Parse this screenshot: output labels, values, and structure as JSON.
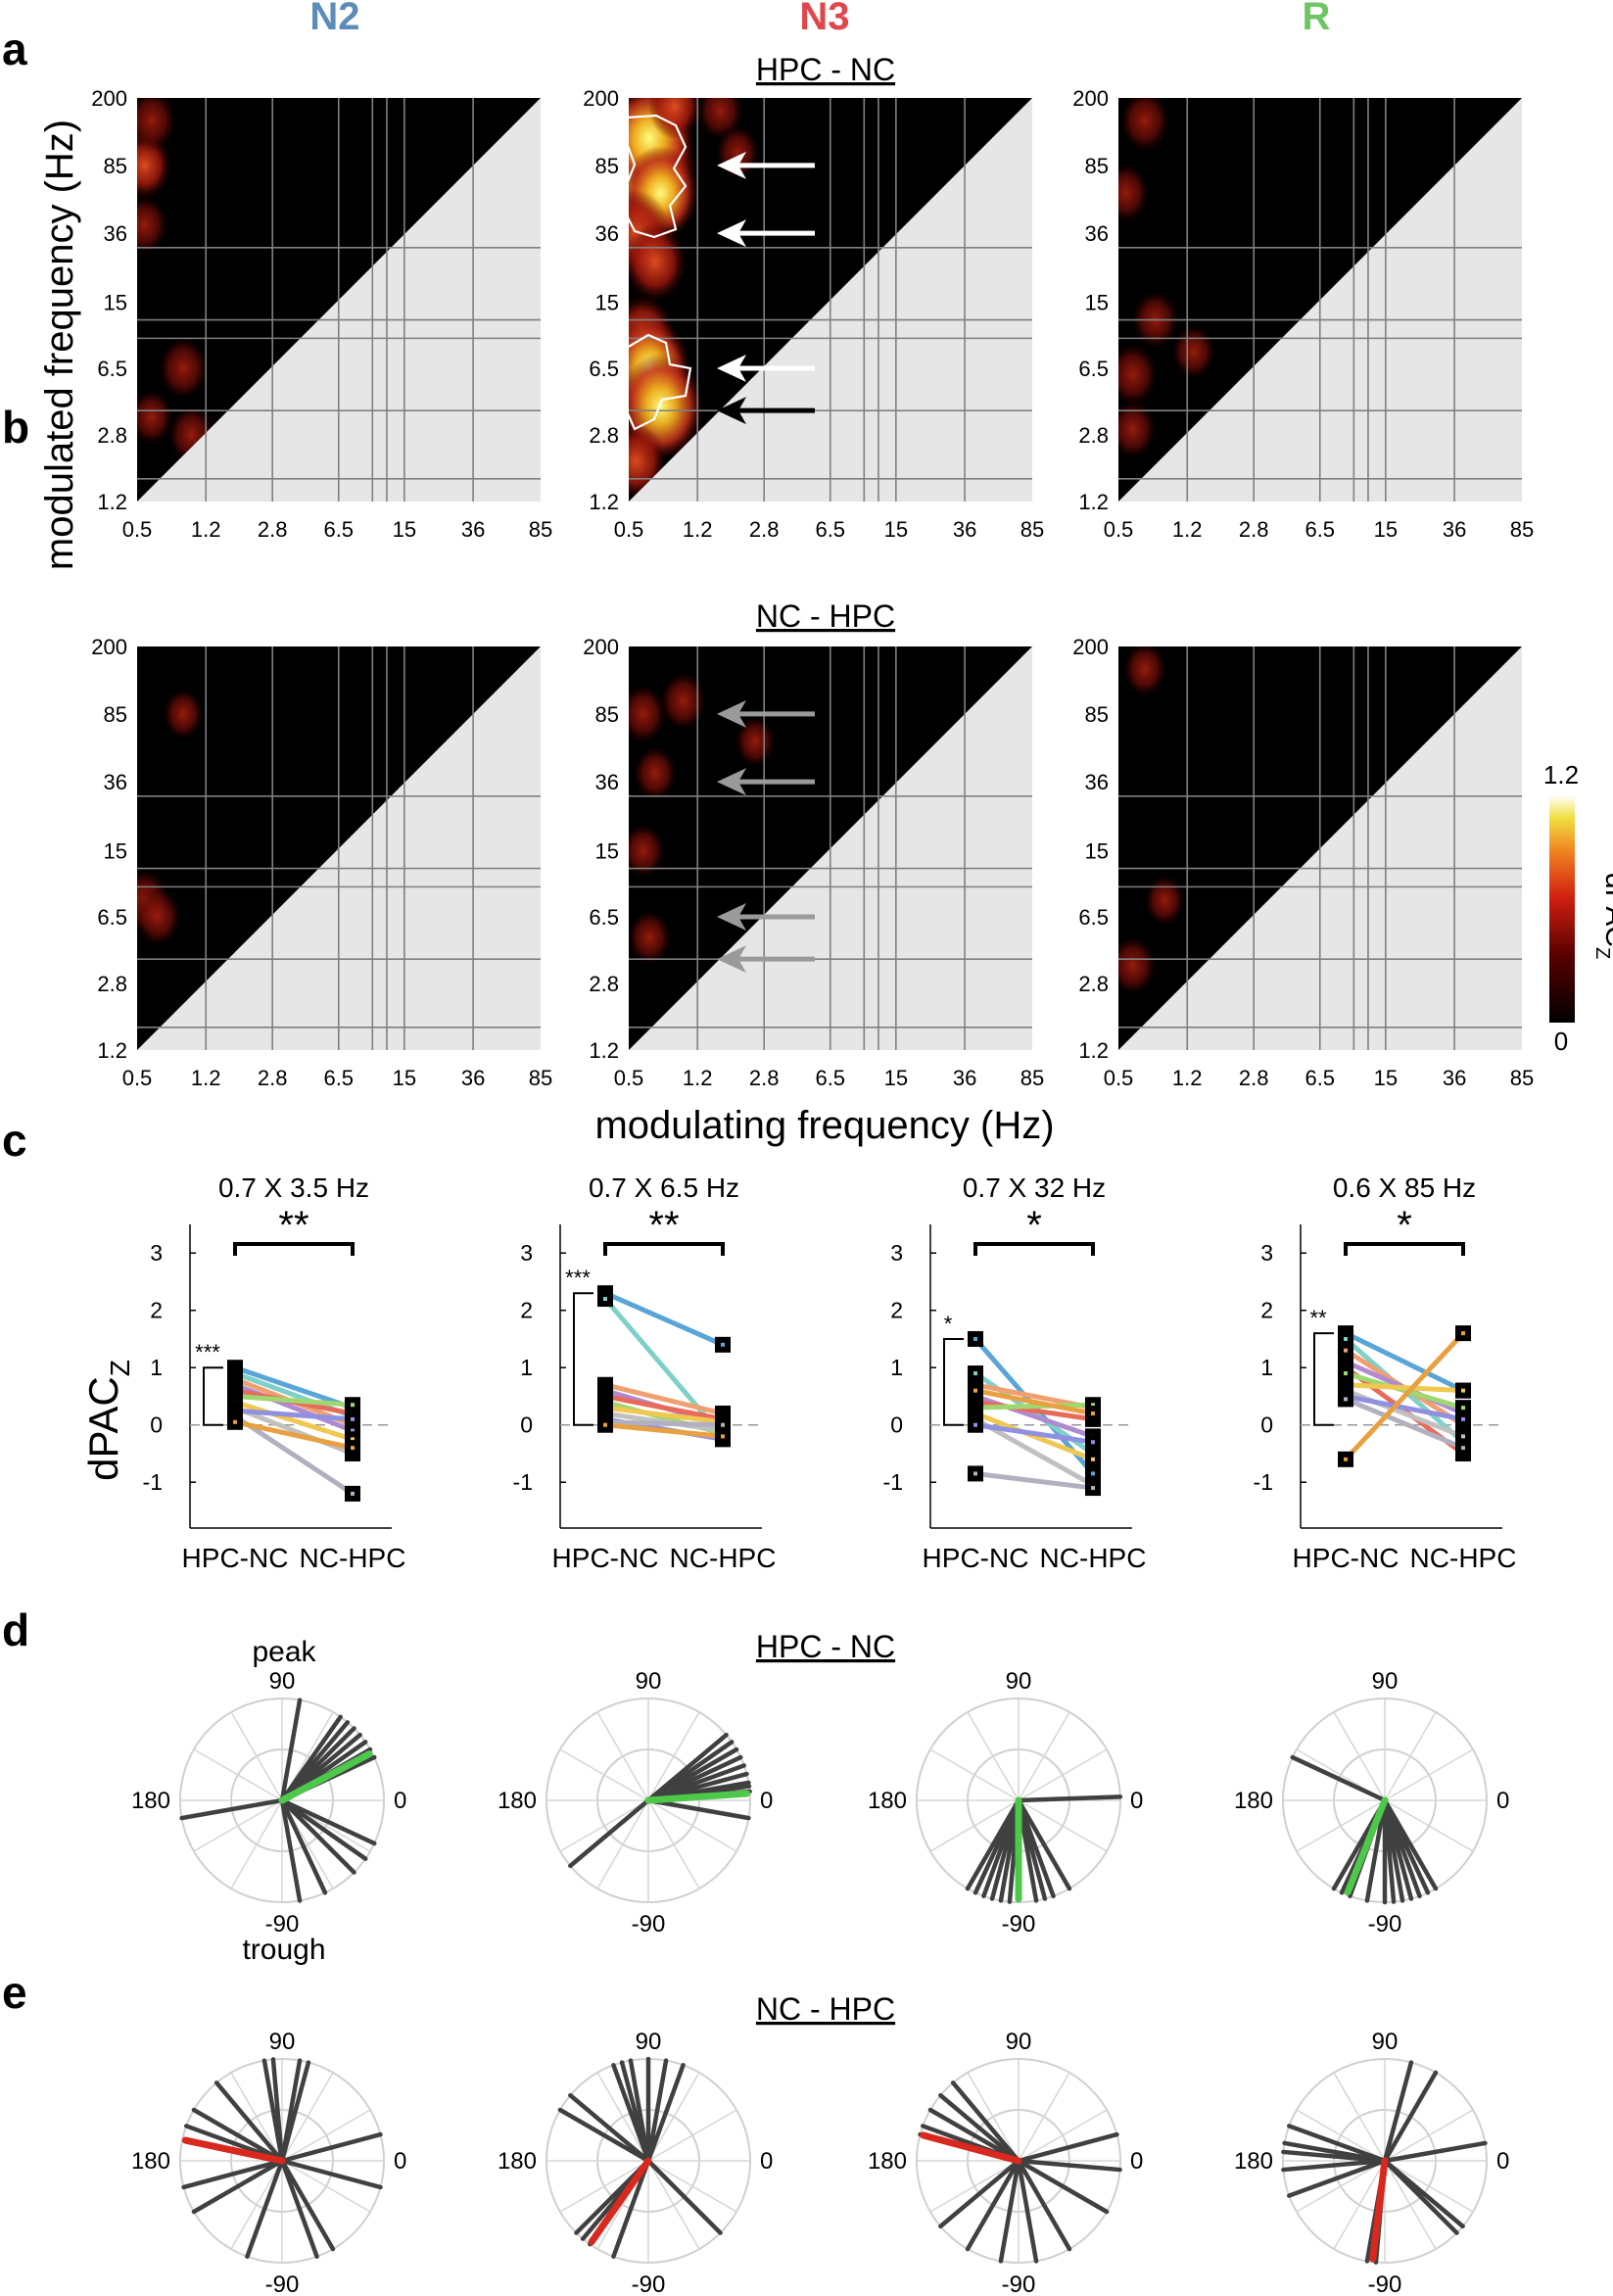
{
  "figure": {
    "panel_labels": [
      "a",
      "b",
      "c",
      "d",
      "e"
    ],
    "state_labels": [
      {
        "text": "N2",
        "color": "#5b8db8"
      },
      {
        "text": "N3",
        "color": "#e0474c"
      },
      {
        "text": "R",
        "color": "#6cc763"
      }
    ],
    "row_a_title": "HPC - NC",
    "row_b_title": "NC - HPC",
    "row_d_title": "HPC - NC",
    "row_e_title": "NC - HPC",
    "ylabel_ab": "modulated frequency (Hz)",
    "xlabel_ab": "modulating frequency (Hz)",
    "colorbar": {
      "label": "dPAC",
      "subscript": "Z",
      "max_label": "1.2",
      "min_label": "0",
      "range": [
        0,
        1.2
      ]
    },
    "ylabel_c": "dPAC",
    "ylabel_c_sub": "Z",
    "polar_annotations": {
      "peak": "peak",
      "trough": "trough"
    }
  },
  "chart_data": [
    {
      "type": "heatmap",
      "panel": "a",
      "title": "HPC - NC",
      "xlabel": "modulating frequency (Hz)",
      "ylabel": "modulated frequency (Hz)",
      "x_ticks": [
        "0.5",
        "1.2",
        "2.8",
        "6.5",
        "15",
        "36",
        "85"
      ],
      "y_ticks": [
        "1.2",
        "2.8",
        "6.5",
        "15",
        "36",
        "85",
        "200"
      ],
      "subplots": [
        {
          "state": "N2",
          "blobs": [
            {
              "x": 0.55,
              "y": 85,
              "value": 0.35
            },
            {
              "x": 0.6,
              "y": 150,
              "value": 0.3
            },
            {
              "x": 0.55,
              "y": 40,
              "value": 0.25
            },
            {
              "x": 0.9,
              "y": 6.5,
              "value": 0.3
            },
            {
              "x": 0.6,
              "y": 3.5,
              "value": 0.2
            },
            {
              "x": 1.0,
              "y": 2.8,
              "value": 0.25
            }
          ]
        },
        {
          "state": "N3",
          "arrows": [
            85,
            36,
            6.5,
            3.8
          ],
          "arrow_colors": [
            "white",
            "white",
            "white",
            "black"
          ],
          "blobs": [
            {
              "x": 0.6,
              "y": 85,
              "value": 1.2
            },
            {
              "x": 0.65,
              "y": 120,
              "value": 0.9
            },
            {
              "x": 0.75,
              "y": 60,
              "value": 0.7
            },
            {
              "x": 0.55,
              "y": 36,
              "value": 0.6
            },
            {
              "x": 0.7,
              "y": 25,
              "value": 0.5
            },
            {
              "x": 0.6,
              "y": 10,
              "value": 0.5
            },
            {
              "x": 0.65,
              "y": 6.5,
              "value": 0.8
            },
            {
              "x": 0.75,
              "y": 4.0,
              "value": 0.85
            },
            {
              "x": 0.55,
              "y": 2.0,
              "value": 0.45
            },
            {
              "x": 0.9,
              "y": 180,
              "value": 0.35
            },
            {
              "x": 1.6,
              "y": 170,
              "value": 0.25
            },
            {
              "x": 2.0,
              "y": 100,
              "value": 0.2
            }
          ]
        },
        {
          "state": "R",
          "blobs": [
            {
              "x": 0.7,
              "y": 150,
              "value": 0.3
            },
            {
              "x": 0.55,
              "y": 60,
              "value": 0.25
            },
            {
              "x": 0.8,
              "y": 12,
              "value": 0.25
            },
            {
              "x": 0.6,
              "y": 6.0,
              "value": 0.3
            },
            {
              "x": 1.3,
              "y": 8,
              "value": 0.2
            },
            {
              "x": 0.6,
              "y": 3.0,
              "value": 0.25
            }
          ]
        }
      ]
    },
    {
      "type": "heatmap",
      "panel": "b",
      "title": "NC - HPC",
      "xlabel": "modulating frequency (Hz)",
      "ylabel": "modulated frequency (Hz)",
      "x_ticks": [
        "0.5",
        "1.2",
        "2.8",
        "6.5",
        "15",
        "36",
        "85"
      ],
      "y_ticks": [
        "1.2",
        "2.8",
        "6.5",
        "15",
        "36",
        "85",
        "200"
      ],
      "subplots": [
        {
          "state": "N2",
          "blobs": [
            {
              "x": 0.55,
              "y": 8.0,
              "value": 0.3
            },
            {
              "x": 0.65,
              "y": 6.5,
              "value": 0.25
            },
            {
              "x": 0.9,
              "y": 85,
              "value": 0.15
            }
          ]
        },
        {
          "state": "N3",
          "arrows": [
            85,
            36,
            6.5,
            3.8
          ],
          "arrow_colors": [
            "grey",
            "grey",
            "grey",
            "grey"
          ],
          "blobs": [
            {
              "x": 0.6,
              "y": 85,
              "value": 0.25
            },
            {
              "x": 1.0,
              "y": 100,
              "value": 0.25
            },
            {
              "x": 0.7,
              "y": 40,
              "value": 0.2
            },
            {
              "x": 0.6,
              "y": 15,
              "value": 0.2
            },
            {
              "x": 0.65,
              "y": 5,
              "value": 0.2
            },
            {
              "x": 2.5,
              "y": 60,
              "value": 0.15
            }
          ]
        },
        {
          "state": "R",
          "blobs": [
            {
              "x": 0.7,
              "y": 150,
              "value": 0.2
            },
            {
              "x": 0.6,
              "y": 3.5,
              "value": 0.25
            },
            {
              "x": 0.9,
              "y": 8,
              "value": 0.15
            }
          ]
        }
      ]
    },
    {
      "type": "line",
      "panel": "c",
      "ylabel": "dPAC_Z",
      "ylim": [
        -1.8,
        3.5
      ],
      "y_ticks": [
        "-1",
        "0",
        "1",
        "2",
        "3"
      ],
      "x_categories": [
        "HPC-NC",
        "NC-HPC"
      ],
      "subplots": [
        {
          "title": "0.7 X 3.5 Hz",
          "compare_sig": "**",
          "zero_sig": "***",
          "pairs": [
            [
              1.0,
              0.3
            ],
            [
              0.9,
              0.15
            ],
            [
              0.8,
              0.0
            ],
            [
              0.7,
              -0.1
            ],
            [
              0.6,
              0.2
            ],
            [
              0.5,
              0.35
            ],
            [
              0.4,
              -0.25
            ],
            [
              0.3,
              -0.5
            ],
            [
              0.25,
              0.1
            ],
            [
              0.15,
              -1.2
            ],
            [
              0.05,
              -0.4
            ]
          ]
        },
        {
          "title": "0.7 X 6.5 Hz",
          "compare_sig": "**",
          "zero_sig": "***",
          "pairs": [
            [
              2.3,
              1.4
            ],
            [
              2.2,
              -0.2
            ],
            [
              0.7,
              0.2
            ],
            [
              0.6,
              0.0
            ],
            [
              0.5,
              0.1
            ],
            [
              0.4,
              -0.15
            ],
            [
              0.3,
              0.05
            ],
            [
              0.2,
              -0.1
            ],
            [
              0.1,
              -0.25
            ],
            [
              0.05,
              0.0
            ],
            [
              0.0,
              -0.2
            ]
          ]
        },
        {
          "title": "0.7 X 32 Hz",
          "compare_sig": "*",
          "zero_sig": "*",
          "pairs": [
            [
              1.5,
              -0.85
            ],
            [
              0.9,
              -0.5
            ],
            [
              0.7,
              0.3
            ],
            [
              0.5,
              -0.2
            ],
            [
              0.4,
              0.1
            ],
            [
              0.3,
              0.35
            ],
            [
              0.2,
              -0.6
            ],
            [
              0.1,
              -1.05
            ],
            [
              0.0,
              -0.3
            ],
            [
              -0.85,
              -1.1
            ],
            [
              0.6,
              0.2
            ]
          ]
        },
        {
          "title": "0.6 X 85 Hz",
          "compare_sig": "*",
          "zero_sig": "**",
          "pairs": [
            [
              1.6,
              0.6
            ],
            [
              1.5,
              -0.3
            ],
            [
              1.3,
              0.0
            ],
            [
              1.1,
              0.2
            ],
            [
              1.0,
              -0.5
            ],
            [
              0.9,
              0.3
            ],
            [
              0.7,
              0.6
            ],
            [
              0.6,
              -0.2
            ],
            [
              0.5,
              0.1
            ],
            [
              0.45,
              -0.4
            ],
            [
              -0.6,
              1.6
            ]
          ]
        }
      ]
    },
    {
      "type": "scatter",
      "panel": "d",
      "title": "HPC - NC",
      "angle_labels": [
        "90",
        "0",
        "-90",
        "180"
      ],
      "subplots": [
        {
          "angles": [
            80,
            55,
            50,
            45,
            40,
            35,
            30,
            25,
            -25,
            -35,
            -45,
            -65,
            -80,
            190
          ],
          "mean_angle": 28
        },
        {
          "angles": [
            40,
            35,
            30,
            25,
            20,
            15,
            10,
            8,
            5,
            -10,
            220
          ],
          "mean_angle": 4
        },
        {
          "angles": [
            2,
            -95,
            -100,
            -105,
            -110,
            -115,
            -120,
            -80,
            -75,
            -70,
            -60
          ],
          "mean_angle": -90
        },
        {
          "angles": [
            155,
            -60,
            -65,
            -70,
            -75,
            -80,
            -85,
            -90,
            -100,
            -110,
            -115,
            -120
          ],
          "mean_angle": -112
        }
      ]
    },
    {
      "type": "scatter",
      "panel": "e",
      "title": "NC - HPC",
      "angle_labels": [
        "90",
        "0",
        "-90",
        "180"
      ],
      "subplots": [
        {
          "angles": [
            100,
            95,
            80,
            75,
            15,
            -15,
            -60,
            -70,
            -110,
            -150,
            -165,
            160,
            150,
            130
          ],
          "mean_angle": 168
        },
        {
          "angles": [
            110,
            105,
            100,
            90,
            80,
            70,
            -45,
            -110,
            -125,
            -130,
            -135,
            140,
            150
          ],
          "mean_angle": -125
        },
        {
          "angles": [
            130,
            140,
            150,
            160,
            165,
            15,
            -5,
            -30,
            -60,
            -80,
            -100,
            -120,
            -140
          ],
          "mean_angle": 165
        },
        {
          "angles": [
            60,
            75,
            10,
            -40,
            -45,
            170,
            175,
            -175,
            -160,
            -100,
            -95,
            160
          ],
          "mean_angle": -97
        }
      ]
    }
  ]
}
